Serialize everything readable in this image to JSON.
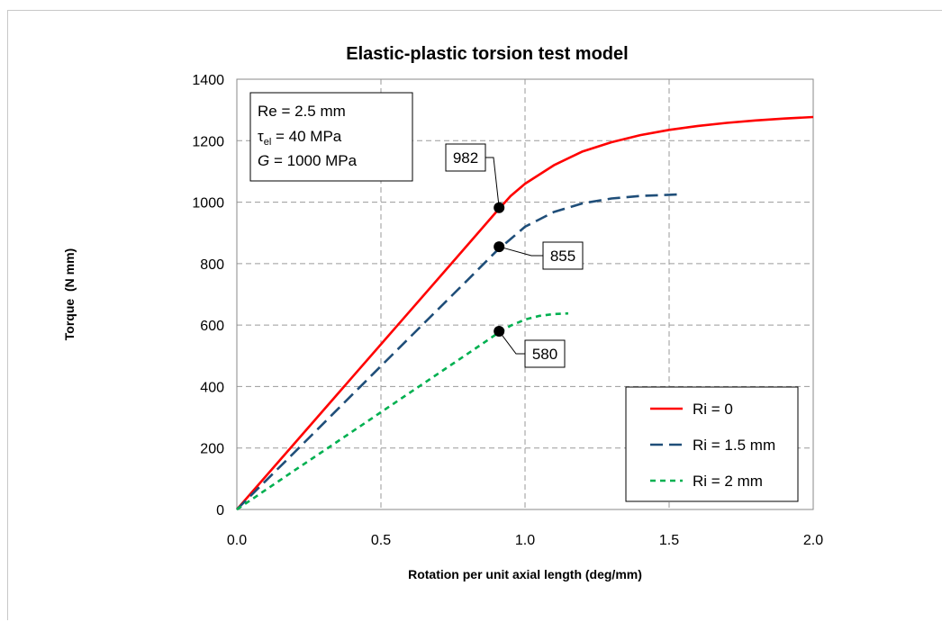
{
  "chart_data": {
    "type": "line",
    "title": "Elastic-plastic torsion test model",
    "xlabel": "Rotation per unit axial length (deg/mm)",
    "ylabel": "Torque  (N mm)",
    "xlim": [
      0,
      2.0
    ],
    "ylim": [
      0,
      1400
    ],
    "xticks": [
      "0.0",
      "0.5",
      "1.0",
      "1.5",
      "2.0"
    ],
    "yticks": [
      "0",
      "200",
      "400",
      "600",
      "800",
      "1000",
      "1200",
      "1400"
    ],
    "grid": true,
    "legend_position": "bottom-right",
    "series": [
      {
        "name": "Ri = 0",
        "color": "#ff0000",
        "dash": "solid",
        "x": [
          0,
          0.2,
          0.4,
          0.6,
          0.8,
          0.9,
          0.95,
          1.0,
          1.1,
          1.2,
          1.3,
          1.4,
          1.5,
          1.6,
          1.7,
          1.8,
          1.9,
          2.0
        ],
        "y": [
          0,
          215,
          430,
          645,
          860,
          968,
          1020,
          1060,
          1120,
          1165,
          1195,
          1218,
          1235,
          1248,
          1258,
          1266,
          1272,
          1277
        ]
      },
      {
        "name": "Ri = 1.5 mm",
        "color": "#1f4e79",
        "dash": "long-dash",
        "x": [
          0,
          0.2,
          0.4,
          0.6,
          0.8,
          0.9,
          1.0,
          1.1,
          1.2,
          1.3,
          1.4,
          1.5,
          1.53
        ],
        "y": [
          0,
          186,
          373,
          560,
          746,
          840,
          920,
          968,
          996,
          1012,
          1020,
          1024,
          1025
        ]
      },
      {
        "name": "Ri = 2 mm",
        "color": "#00b050",
        "dash": "short-dash",
        "x": [
          0,
          0.2,
          0.4,
          0.6,
          0.8,
          0.9,
          0.95,
          1.0,
          1.05,
          1.1,
          1.15
        ],
        "y": [
          0,
          127,
          253,
          380,
          506,
          570,
          598,
          618,
          630,
          636,
          638
        ]
      }
    ],
    "markers": [
      {
        "x": 0.91,
        "y": 982,
        "label": "982"
      },
      {
        "x": 0.91,
        "y": 855,
        "label": "855"
      },
      {
        "x": 0.91,
        "y": 580,
        "label": "580"
      }
    ],
    "info_box": {
      "line1": "Re = 2.5 mm",
      "line2_symbol": "τ",
      "line2_sub": "el",
      "line2_rest": " = 40 MPa",
      "line3_italic": "G",
      "line3_rest": " = 1000 MPa"
    }
  }
}
